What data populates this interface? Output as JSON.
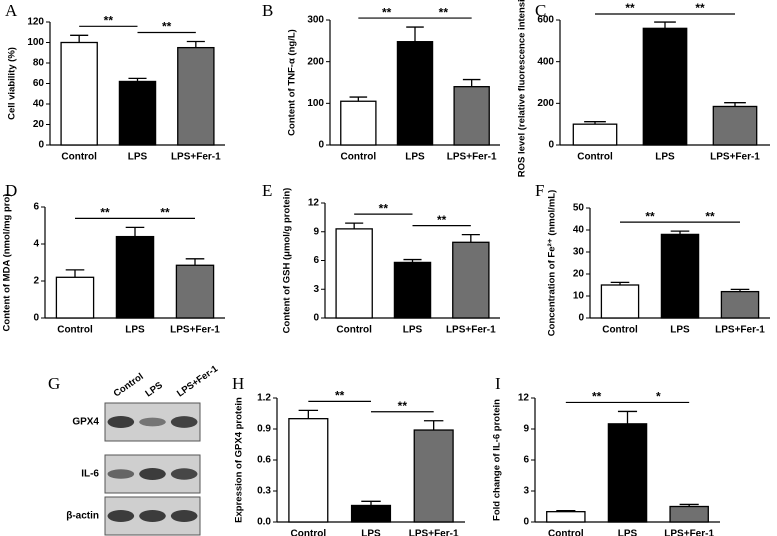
{
  "chart_data": [
    {
      "type": "bar",
      "panel": "A",
      "ylabel": "Cell viability (%)",
      "categories": [
        "Control",
        "LPS",
        "LPS+Fer-1"
      ],
      "values": [
        100,
        62,
        95
      ],
      "errors": [
        7,
        3,
        6
      ],
      "colors": [
        "#ffffff",
        "#000000",
        "#707070"
      ],
      "ylim": [
        0,
        120
      ],
      "yticks": [
        0,
        20,
        40,
        60,
        80,
        100,
        120
      ],
      "brackets": [
        {
          "label": "**",
          "between": [
            "Control",
            "LPS"
          ]
        },
        {
          "label": "**",
          "between": [
            "LPS",
            "LPS+Fer-1"
          ]
        }
      ]
    },
    {
      "type": "bar",
      "panel": "B",
      "ylabel": "Content of TNF-α (ng/L)",
      "categories": [
        "Control",
        "LPS",
        "LPS+Fer-1"
      ],
      "values": [
        105,
        248,
        140
      ],
      "errors": [
        10,
        35,
        17
      ],
      "colors": [
        "#ffffff",
        "#000000",
        "#707070"
      ],
      "ylim": [
        0,
        300
      ],
      "yticks": [
        0,
        100,
        200,
        300
      ],
      "brackets": [
        {
          "label": "**",
          "between": [
            "Control",
            "LPS"
          ]
        },
        {
          "label": "**",
          "between": [
            "LPS",
            "LPS+Fer-1"
          ]
        }
      ]
    },
    {
      "type": "bar",
      "panel": "C",
      "ylabel": "ROS level (relative fluorescence intensity)",
      "categories": [
        "Control",
        "LPS",
        "LPS+Fer-1"
      ],
      "values": [
        100,
        560,
        185
      ],
      "errors": [
        12,
        30,
        18
      ],
      "colors": [
        "#ffffff",
        "#000000",
        "#707070"
      ],
      "ylim": [
        0,
        600
      ],
      "yticks": [
        0,
        200,
        400,
        600
      ],
      "brackets": [
        {
          "label": "**",
          "between": [
            "Control",
            "LPS"
          ]
        },
        {
          "label": "**",
          "between": [
            "LPS",
            "LPS+Fer-1"
          ]
        }
      ]
    },
    {
      "type": "bar",
      "panel": "D",
      "ylabel": "Content of MDA (nmol/mg pro)",
      "categories": [
        "Control",
        "LPS",
        "LPS+Fer-1"
      ],
      "values": [
        2.2,
        4.4,
        2.85
      ],
      "errors": [
        0.4,
        0.5,
        0.35
      ],
      "colors": [
        "#ffffff",
        "#000000",
        "#707070"
      ],
      "ylim": [
        0,
        6
      ],
      "yticks": [
        0,
        2,
        4,
        6
      ],
      "brackets": [
        {
          "label": "**",
          "between": [
            "Control",
            "LPS"
          ]
        },
        {
          "label": "**",
          "between": [
            "LPS",
            "LPS+Fer-1"
          ]
        }
      ]
    },
    {
      "type": "bar",
      "panel": "E",
      "ylabel": "Content of GSH (μmol/g protein)",
      "categories": [
        "Control",
        "LPS",
        "LPS+Fer-1"
      ],
      "values": [
        9.3,
        5.8,
        7.9
      ],
      "errors": [
        0.6,
        0.3,
        0.8
      ],
      "colors": [
        "#ffffff",
        "#000000",
        "#707070"
      ],
      "ylim": [
        0,
        12
      ],
      "yticks": [
        0,
        3,
        6,
        9,
        12
      ],
      "brackets": [
        {
          "label": "**",
          "between": [
            "Control",
            "LPS"
          ]
        },
        {
          "label": "**",
          "between": [
            "LPS",
            "LPS+Fer-1"
          ]
        }
      ]
    },
    {
      "type": "bar",
      "panel": "F",
      "ylabel": "Concentration of Fe²⁺ (nmol/mL)",
      "categories": [
        "Control",
        "LPS",
        "LPS+Fer-1"
      ],
      "values": [
        15,
        38,
        12
      ],
      "errors": [
        1.2,
        1.5,
        1
      ],
      "colors": [
        "#ffffff",
        "#000000",
        "#707070"
      ],
      "ylim": [
        0,
        50
      ],
      "yticks": [
        0,
        10,
        20,
        30,
        40,
        50
      ],
      "brackets": [
        {
          "label": "**",
          "between": [
            "Control",
            "LPS"
          ]
        },
        {
          "label": "**",
          "between": [
            "LPS",
            "LPS+Fer-1"
          ]
        }
      ]
    },
    {
      "type": "bar",
      "panel": "H",
      "ylabel": "Expression of GPX4 protein",
      "categories": [
        "Control",
        "LPS",
        "LPS+Fer-1"
      ],
      "values": [
        1.0,
        0.16,
        0.89
      ],
      "errors": [
        0.08,
        0.04,
        0.09
      ],
      "colors": [
        "#ffffff",
        "#000000",
        "#707070"
      ],
      "ylim": [
        0,
        1.2
      ],
      "yticks": [
        {
          "value": 0,
          "label": "0.0"
        },
        0.3,
        0.6,
        0.9,
        1.2
      ],
      "brackets": [
        {
          "label": "**",
          "between": [
            "Control",
            "LPS"
          ]
        },
        {
          "label": "**",
          "between": [
            "LPS",
            "LPS+Fer-1"
          ]
        }
      ]
    },
    {
      "type": "bar",
      "panel": "I",
      "ylabel": "Fold change of IL-6 protein",
      "categories": [
        "Control",
        "LPS",
        "LPS+Fer-1"
      ],
      "values": [
        1.0,
        9.5,
        1.5
      ],
      "errors": [
        0.1,
        1.2,
        0.2
      ],
      "colors": [
        "#ffffff",
        "#000000",
        "#707070"
      ],
      "ylim": [
        0,
        12
      ],
      "yticks": [
        0,
        3,
        6,
        9,
        12
      ],
      "brackets": [
        {
          "label": "**",
          "between": [
            "Control",
            "LPS"
          ]
        },
        {
          "label": "*",
          "between": [
            "LPS",
            "LPS+Fer-1"
          ]
        }
      ]
    }
  ],
  "blot": {
    "panel": "G",
    "lanes": [
      "Control",
      "LPS",
      "LPS+Fer-1"
    ],
    "rows": [
      "GPX4",
      "IL-6",
      "β-actin"
    ]
  }
}
